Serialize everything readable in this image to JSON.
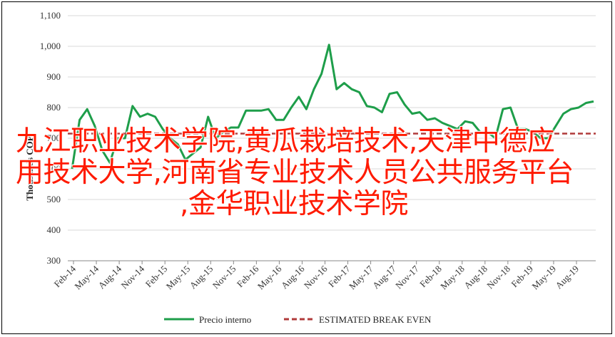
{
  "chart_data": {
    "type": "line",
    "title": "",
    "xlabel": "",
    "ylabel": "Thousands COP",
    "ylim": [
      300,
      1100
    ],
    "yticks": [
      "300",
      "400",
      "500",
      "600",
      "700",
      "800",
      "900",
      "1,000",
      "1,100"
    ],
    "x_tick_labels": [
      "Feb-14",
      "May-14",
      "Aug-14",
      "Nov-14",
      "Feb-15",
      "May-15",
      "Aug-15",
      "Nov-15",
      "Feb-16",
      "May-16",
      "Aug-16",
      "Nov-16",
      "Feb-17",
      "May-17",
      "Aug-17",
      "Nov-17",
      "Feb-18",
      "May-18",
      "Aug-18",
      "Nov-18",
      "Feb-19",
      "May-19",
      "Aug-19"
    ],
    "grid": "horizontal",
    "legend_position": "bottom",
    "series": [
      {
        "name": "Precio interno",
        "color": "#1e9e4a",
        "style": "solid",
        "values": [
          600,
          760,
          795,
          740,
          660,
          620,
          700,
          700,
          805,
          770,
          780,
          770,
          730,
          700,
          680,
          630,
          650,
          670,
          770,
          700,
          720,
          735,
          735,
          790,
          790,
          790,
          795,
          760,
          760,
          800,
          835,
          795,
          860,
          910,
          1005,
          860,
          880,
          860,
          850,
          805,
          800,
          785,
          845,
          850,
          810,
          780,
          785,
          760,
          765,
          750,
          740,
          730,
          755,
          750,
          720,
          720,
          700,
          795,
          800,
          730,
          730,
          720,
          700,
          700,
          740,
          780,
          795,
          800,
          815,
          820
        ]
      },
      {
        "name": "ESTIMATED BREAK EVEN",
        "color": "#b03a3a",
        "style": "dashed",
        "values": [
          715,
          715
        ]
      }
    ]
  },
  "overlay": {
    "line1": "九江职业技术学院,黄瓜栽培技术,天津中德应",
    "line2": "用技术大学,河南省专业技术人员公共服务平台",
    "line3": ",金华职业技术学院"
  }
}
